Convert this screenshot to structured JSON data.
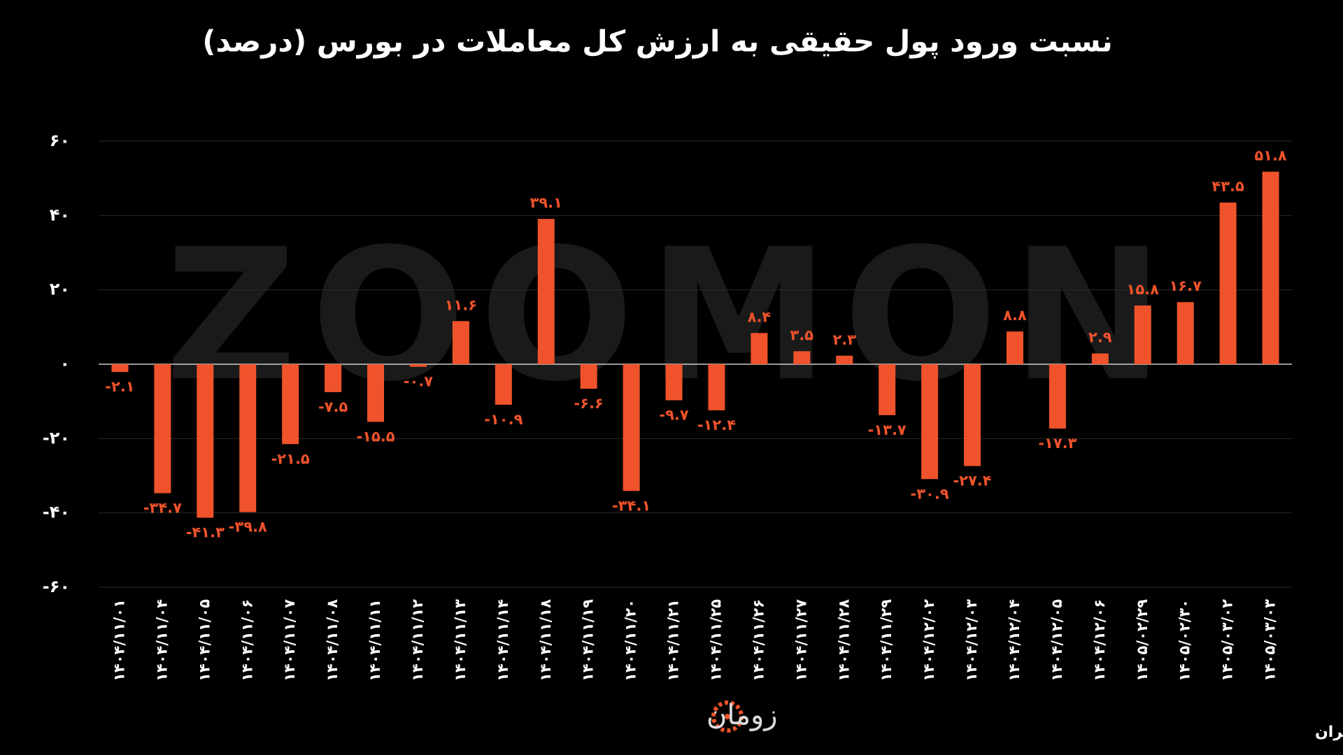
{
  "chart_data": {
    "type": "bar",
    "title": "نسبت ورود پول حقیقی به ارزش کل معاملات در بورس (درصد)",
    "watermark": "ZOOMON",
    "brand": "زومان",
    "source": "منبع: بورس تهران",
    "color": "#f0532b",
    "grid": true,
    "categories": [
      "۱۴۰۴/۱۱/۰۱",
      "۱۴۰۴/۱۱/۰۴",
      "۱۴۰۴/۱۱/۰۵",
      "۱۴۰۴/۱۱/۰۶",
      "۱۴۰۴/۱۱/۰۷",
      "۱۴۰۴/۱۱/۰۸",
      "۱۴۰۴/۱۱/۱۱",
      "۱۴۰۴/۱۱/۱۲",
      "۱۴۰۴/۱۱/۱۳",
      "۱۴۰۴/۱۱/۱۴",
      "۱۴۰۴/۱۱/۱۸",
      "۱۴۰۴/۱۱/۱۹",
      "۱۴۰۴/۱۱/۲۰",
      "۱۴۰۴/۱۱/۲۱",
      "۱۴۰۴/۱۱/۲۵",
      "۱۴۰۴/۱۱/۲۶",
      "۱۴۰۴/۱۱/۲۷",
      "۱۴۰۴/۱۱/۲۸",
      "۱۴۰۴/۱۱/۲۹",
      "۱۴۰۴/۱۲/۰۲",
      "۱۴۰۴/۱۲/۰۳",
      "۱۴۰۴/۱۲/۰۴",
      "۱۴۰۴/۱۲/۰۵",
      "۱۴۰۴/۱۲/۰۶",
      "۱۴۰۵/۰۲/۲۹",
      "۱۴۰۵/۰۲/۳۰",
      "۱۴۰۵/۰۳/۰۲",
      "۱۴۰۵/۰۳/۰۳"
    ],
    "values": [
      -2.1,
      -34.7,
      -41.3,
      -39.8,
      -21.5,
      -7.5,
      -15.5,
      -0.7,
      11.6,
      -10.9,
      39.1,
      -6.6,
      -34.1,
      -9.7,
      -12.4,
      8.4,
      3.5,
      2.3,
      -13.7,
      -30.9,
      -27.4,
      8.8,
      -17.3,
      2.9,
      15.8,
      16.7,
      43.5,
      51.8
    ],
    "value_labels": [
      "-۲.۱",
      "-۳۴.۷",
      "-۴۱.۳",
      "-۳۹.۸",
      "-۲۱.۵",
      "-۷.۵",
      "-۱۵.۵",
      "-۰.۷",
      "۱۱.۶",
      "-۱۰.۹",
      "۳۹.۱",
      "-۶.۶",
      "-۳۴.۱",
      "-۹.۷",
      "-۱۲.۴",
      "۸.۴",
      "۳.۵",
      "۲.۳",
      "-۱۳.۷",
      "-۳۰.۹",
      "-۲۷.۴",
      "۸.۸",
      "-۱۷.۳",
      "۲.۹",
      "۱۵.۸",
      "۱۶.۷",
      "۴۳.۵",
      "۵۱.۸"
    ],
    "ylim": [
      -60,
      60
    ],
    "yticks": [
      {
        "value": -60,
        "label": "-۶۰"
      },
      {
        "value": -40,
        "label": "-۴۰"
      },
      {
        "value": -20,
        "label": "-۲۰"
      },
      {
        "value": 0,
        "label": "۰"
      },
      {
        "value": 20,
        "label": "۲۰"
      },
      {
        "value": 40,
        "label": "۴۰"
      },
      {
        "value": 60,
        "label": "۶۰"
      }
    ]
  }
}
